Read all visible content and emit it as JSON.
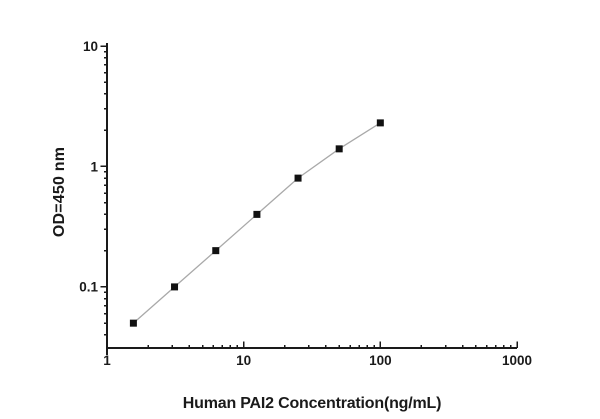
{
  "figure": {
    "background": "#ffffff",
    "axis_color": "#1a1a1a",
    "tick_label_color": "#1a1a1a"
  },
  "chart_data": {
    "type": "line",
    "title": "",
    "xlabel": "Human PAI2 Concentration(ng/mL)",
    "ylabel": "OD=450 nm",
    "xscale": "log",
    "yscale": "log",
    "xlim": [
      1,
      1000
    ],
    "ylim": [
      0.0311,
      10
    ],
    "grid": false,
    "legend": false,
    "xticks": {
      "values": [
        1,
        10,
        100,
        1000
      ],
      "labels": [
        "1",
        "10",
        "100",
        "1000"
      ]
    },
    "yticks": {
      "values": [
        0.1,
        1,
        10
      ],
      "labels": [
        "0.1",
        "1",
        "10"
      ]
    },
    "series": [
      {
        "name": "standard-curve",
        "marker": "filled-square",
        "marker_color": "#111111",
        "line_color": "#a9a9a9",
        "x": [
          1.56,
          3.12,
          6.25,
          12.5,
          25,
          50,
          100
        ],
        "y": [
          0.05,
          0.1,
          0.2,
          0.4,
          0.8,
          1.4,
          2.3
        ]
      }
    ]
  }
}
